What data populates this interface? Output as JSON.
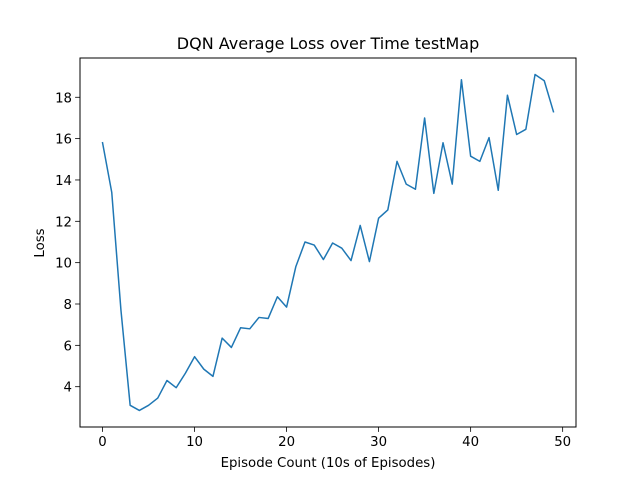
{
  "chart_data": {
    "type": "line",
    "title": "DQN Average Loss over Time testMap",
    "xlabel": "Episode Count (10s of Episodes)",
    "ylabel": "Loss",
    "xlim": [
      -2.45,
      51.45
    ],
    "ylim": [
      2.05,
      19.9
    ],
    "xticks": [
      0,
      10,
      20,
      30,
      40,
      50
    ],
    "yticks": [
      4,
      6,
      8,
      10,
      12,
      14,
      16,
      18
    ],
    "grid": false,
    "legend": "none",
    "series": [
      {
        "color": "#1f77b4",
        "x": [
          0,
          1,
          2,
          3,
          4,
          5,
          6,
          7,
          8,
          9,
          10,
          11,
          12,
          13,
          14,
          15,
          16,
          17,
          18,
          19,
          20,
          21,
          22,
          23,
          24,
          25,
          26,
          27,
          28,
          29,
          30,
          31,
          32,
          33,
          34,
          35,
          36,
          37,
          38,
          39,
          40,
          41,
          42,
          43,
          44,
          45,
          46,
          47,
          48,
          49
        ],
        "values": [
          15.8,
          13.4,
          7.7,
          3.1,
          2.85,
          3.1,
          3.45,
          4.3,
          3.95,
          4.65,
          5.45,
          4.85,
          4.5,
          6.35,
          5.9,
          6.85,
          6.8,
          7.35,
          7.3,
          8.35,
          7.85,
          9.8,
          11.0,
          10.85,
          10.15,
          10.95,
          10.7,
          10.1,
          11.8,
          10.05,
          12.15,
          12.55,
          14.9,
          13.8,
          13.55,
          17.0,
          13.35,
          15.8,
          13.8,
          18.85,
          15.15,
          14.9,
          16.05,
          13.5,
          18.1,
          16.2,
          16.45,
          19.1,
          18.8,
          17.3
        ]
      }
    ]
  }
}
